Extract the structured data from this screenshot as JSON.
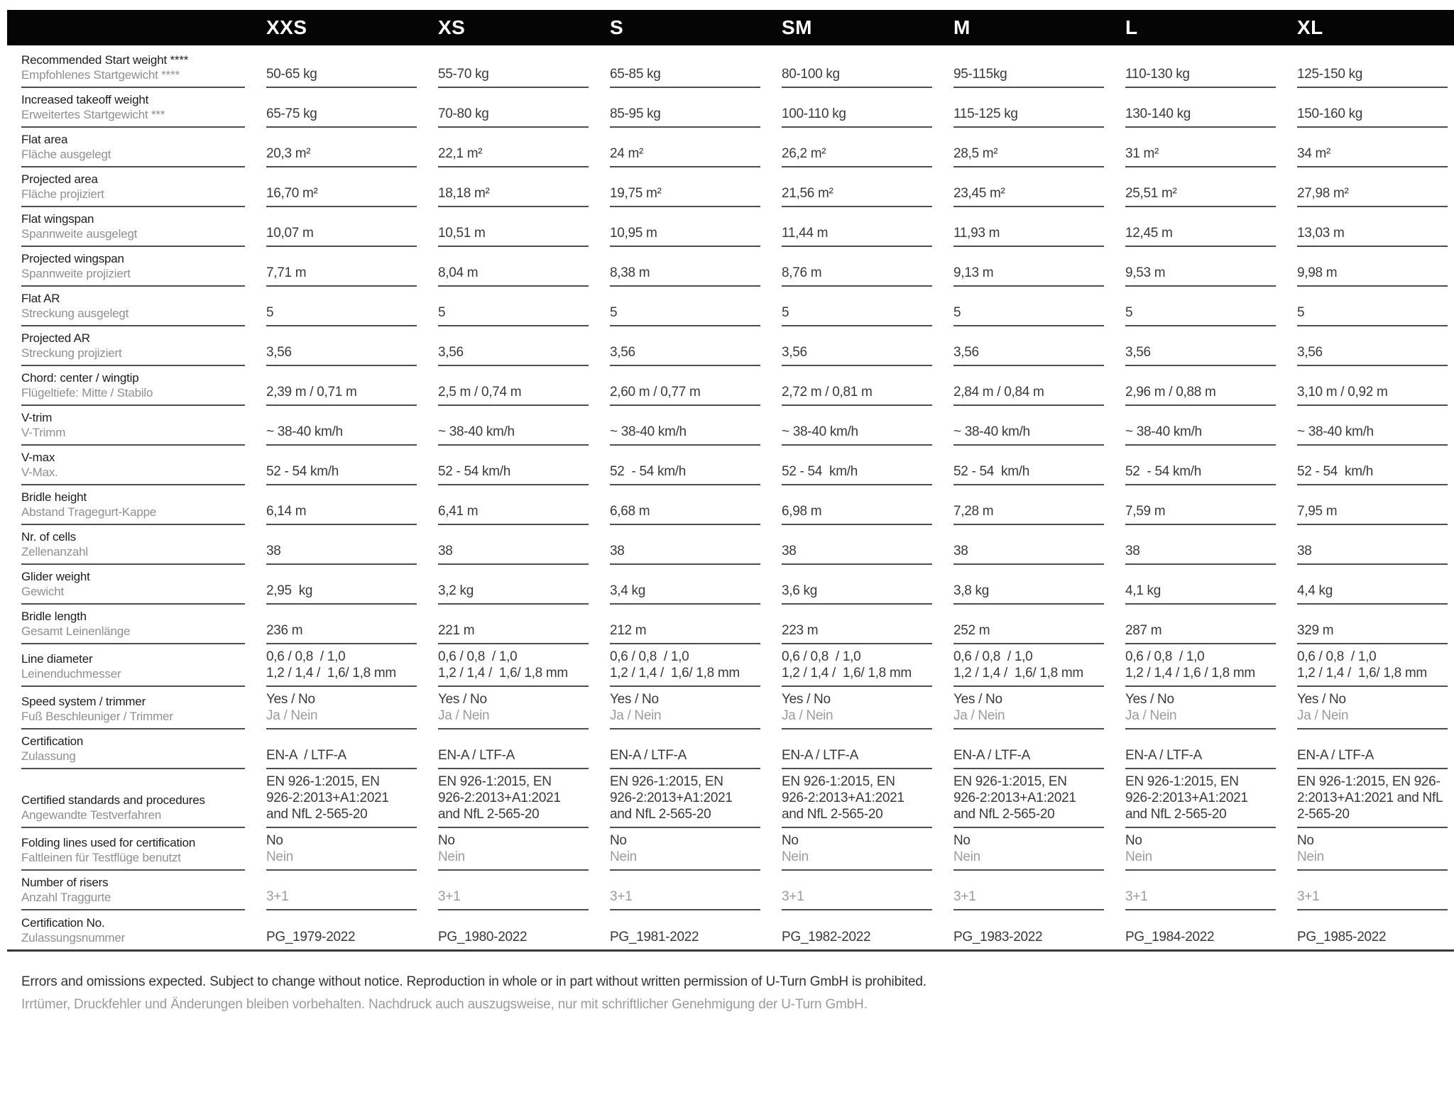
{
  "header": {
    "sizes": [
      "XXS",
      "XS",
      "S",
      "SM",
      "M",
      "L",
      "XL"
    ]
  },
  "rows": [
    {
      "en": "Recommended Start weight ****",
      "de": "Empfohlenes Startgewicht ****",
      "cells": [
        {
          "v": "50-65 kg"
        },
        {
          "v": "55-70 kg"
        },
        {
          "v": "65-85 kg"
        },
        {
          "v": "80-100 kg"
        },
        {
          "v": "95-115kg"
        },
        {
          "v": "110-130 kg"
        },
        {
          "v": "125-150 kg"
        }
      ]
    },
    {
      "en": "Increased takeoff weight",
      "de": "Erweitertes Startgewicht ***",
      "cells": [
        {
          "v": "65-75 kg"
        },
        {
          "v": "70-80 kg"
        },
        {
          "v": "85-95 kg"
        },
        {
          "v": "100-110 kg"
        },
        {
          "v": "115-125 kg"
        },
        {
          "v": "130-140 kg"
        },
        {
          "v": "150-160 kg"
        }
      ]
    },
    {
      "en": "Flat area",
      "de": "Fläche ausgelegt",
      "cells": [
        {
          "v": "20,3 m²"
        },
        {
          "v": "22,1 m²"
        },
        {
          "v": "24 m²"
        },
        {
          "v": "26,2 m²"
        },
        {
          "v": "28,5 m²"
        },
        {
          "v": "31 m²"
        },
        {
          "v": "34 m²"
        }
      ]
    },
    {
      "en": "Projected area",
      "de": "Fläche projiziert",
      "cells": [
        {
          "v": "16,70 m²"
        },
        {
          "v": "18,18 m²"
        },
        {
          "v": "19,75 m²"
        },
        {
          "v": "21,56 m²"
        },
        {
          "v": "23,45 m²"
        },
        {
          "v": "25,51 m²"
        },
        {
          "v": "27,98 m²"
        }
      ]
    },
    {
      "en": "Flat wingspan",
      "de": "Spannweite ausgelegt",
      "cells": [
        {
          "v": "10,07 m"
        },
        {
          "v": "10,51 m"
        },
        {
          "v": "10,95 m"
        },
        {
          "v": "11,44 m"
        },
        {
          "v": "11,93 m"
        },
        {
          "v": "12,45 m"
        },
        {
          "v": "13,03 m"
        }
      ]
    },
    {
      "en": "Projected wingspan",
      "de": "Spannweite projiziert",
      "cells": [
        {
          "v": "7,71 m"
        },
        {
          "v": "8,04 m"
        },
        {
          "v": "8,38 m"
        },
        {
          "v": "8,76 m"
        },
        {
          "v": "9,13 m"
        },
        {
          "v": "9,53 m"
        },
        {
          "v": "9,98 m"
        }
      ]
    },
    {
      "en": "Flat AR",
      "de": "Streckung ausgelegt",
      "cells": [
        {
          "v": "5"
        },
        {
          "v": "5"
        },
        {
          "v": "5"
        },
        {
          "v": "5"
        },
        {
          "v": "5"
        },
        {
          "v": "5"
        },
        {
          "v": "5"
        }
      ]
    },
    {
      "en": "Projected AR",
      "de": "Streckung projiziert",
      "cells": [
        {
          "v": "3,56"
        },
        {
          "v": "3,56"
        },
        {
          "v": "3,56"
        },
        {
          "v": "3,56"
        },
        {
          "v": "3,56"
        },
        {
          "v": "3,56"
        },
        {
          "v": "3,56"
        }
      ]
    },
    {
      "en": "Chord: center / wingtip",
      "de": "Flügeltiefe: Mitte / Stabilo",
      "cells": [
        {
          "v": "2,39 m / 0,71 m"
        },
        {
          "v": "2,5 m / 0,74 m"
        },
        {
          "v": "2,60 m / 0,77 m"
        },
        {
          "v": "2,72 m / 0,81 m"
        },
        {
          "v": "2,84 m / 0,84 m"
        },
        {
          "v": "2,96 m / 0,88 m"
        },
        {
          "v": "3,10 m / 0,92 m"
        }
      ]
    },
    {
      "en": "V-trim",
      "de": "V-Trimm",
      "cells": [
        {
          "v": "~ 38-40 km/h"
        },
        {
          "v": "~ 38-40 km/h"
        },
        {
          "v": "~ 38-40 km/h"
        },
        {
          "v": "~ 38-40 km/h"
        },
        {
          "v": "~ 38-40 km/h"
        },
        {
          "v": "~ 38-40 km/h"
        },
        {
          "v": "~ 38-40 km/h"
        }
      ]
    },
    {
      "en": "V-max",
      "de": "V-Max.",
      "cells": [
        {
          "v": "52 - 54 km/h"
        },
        {
          "v": "52 - 54 km/h"
        },
        {
          "v": "52  - 54 km/h"
        },
        {
          "v": "52 - 54  km/h"
        },
        {
          "v": "52 - 54  km/h"
        },
        {
          "v": "52  - 54 km/h"
        },
        {
          "v": "52 - 54  km/h"
        }
      ]
    },
    {
      "en": "Bridle height",
      "de": "Abstand Tragegurt-Kappe",
      "cells": [
        {
          "v": "6,14 m"
        },
        {
          "v": "6,41 m"
        },
        {
          "v": "6,68 m"
        },
        {
          "v": "6,98 m"
        },
        {
          "v": "7,28 m"
        },
        {
          "v": "7,59 m"
        },
        {
          "v": "7,95 m"
        }
      ]
    },
    {
      "en": "Nr. of cells",
      "de": "Zellenanzahl",
      "cells": [
        {
          "v": "38"
        },
        {
          "v": "38"
        },
        {
          "v": "38"
        },
        {
          "v": "38"
        },
        {
          "v": "38"
        },
        {
          "v": "38"
        },
        {
          "v": "38"
        }
      ]
    },
    {
      "en": "Glider weight",
      "de": "Gewicht",
      "cells": [
        {
          "v": "2,95  kg"
        },
        {
          "v": "3,2 kg"
        },
        {
          "v": "3,4 kg"
        },
        {
          "v": "3,6 kg"
        },
        {
          "v": "3,8 kg"
        },
        {
          "v": "4,1 kg"
        },
        {
          "v": "4,4 kg"
        }
      ]
    },
    {
      "en": "Bridle length",
      "de": "Gesamt Leinenlänge",
      "cells": [
        {
          "v": "236 m"
        },
        {
          "v": "221 m"
        },
        {
          "v": "212 m"
        },
        {
          "v": "223 m"
        },
        {
          "v": "252 m"
        },
        {
          "v": "287 m"
        },
        {
          "v": "329 m"
        }
      ]
    },
    {
      "en": "Line diameter",
      "de": "Leinenduchmesser",
      "cells": [
        {
          "v": "0,6 / 0,8  / 1,0\n1,2 / 1,4 /  1,6/ 1,8 mm"
        },
        {
          "v": "0,6 / 0,8  / 1,0\n1,2 / 1,4 /  1,6/ 1,8 mm"
        },
        {
          "v": "0,6 / 0,8  / 1,0\n1,2 / 1,4 /  1,6/ 1,8 mm"
        },
        {
          "v": "0,6 / 0,8  / 1,0\n1,2 / 1,4 /  1,6/ 1,8 mm"
        },
        {
          "v": "0,6 / 0,8  / 1,0\n1,2 / 1,4 /  1,6/ 1,8 mm"
        },
        {
          "v": "0,6 / 0,8  / 1,0\n1,2 / 1,4 / 1,6 / 1,8 mm"
        },
        {
          "v": "0,6 / 0,8  / 1,0\n1,2 / 1,4 /  1,6/ 1,8 mm"
        }
      ]
    },
    {
      "en": "Speed system / trimmer",
      "de": "Fuß Beschleuniger / Trimmer",
      "cells": [
        {
          "v": "Yes / No",
          "sub": "Ja / Nein"
        },
        {
          "v": "Yes / No",
          "sub": "Ja / Nein"
        },
        {
          "v": "Yes / No",
          "sub": "Ja / Nein"
        },
        {
          "v": "Yes / No",
          "sub": "Ja / Nein"
        },
        {
          "v": "Yes / No",
          "sub": "Ja / Nein"
        },
        {
          "v": "Yes / No",
          "sub": "Ja / Nein"
        },
        {
          "v": "Yes / No",
          "sub": "Ja / Nein"
        }
      ]
    },
    {
      "en": "Certification",
      "de": "Zulassung",
      "cells": [
        {
          "v": "EN-A  / LTF-A"
        },
        {
          "v": "EN-A / LTF-A"
        },
        {
          "v": "EN-A / LTF-A"
        },
        {
          "v": "EN-A / LTF-A"
        },
        {
          "v": "EN-A / LTF-A"
        },
        {
          "v": "EN-A / LTF-A"
        },
        {
          "v": "EN-A / LTF-A"
        }
      ]
    },
    {
      "en": "Certified standards and procedures",
      "de": "Angewandte Testverfahren",
      "cells": [
        {
          "v": "EN 926-1:2015, EN\n926-2:2013+A1:2021\nand NfL 2-565-20"
        },
        {
          "v": "EN 926-1:2015, EN\n926-2:2013+A1:2021\nand NfL 2-565-20"
        },
        {
          "v": "EN 926-1:2015, EN\n926-2:2013+A1:2021\nand NfL 2-565-20"
        },
        {
          "v": "EN 926-1:2015, EN\n926-2:2013+A1:2021\nand NfL 2-565-20"
        },
        {
          "v": "EN 926-1:2015, EN\n926-2:2013+A1:2021\nand NfL 2-565-20"
        },
        {
          "v": "EN 926-1:2015, EN\n926-2:2013+A1:2021\nand NfL 2-565-20"
        },
        {
          "v": "EN 926-1:2015, EN 926-\n2:2013+A1:2021 and NfL\n2-565-20"
        }
      ]
    },
    {
      "en": "Folding lines used for certification",
      "de": "Faltleinen für Testflüge benutzt",
      "cells": [
        {
          "v": "No",
          "sub": "Nein"
        },
        {
          "v": "No",
          "sub": "Nein"
        },
        {
          "v": "No",
          "sub": "Nein"
        },
        {
          "v": "No",
          "sub": "Nein"
        },
        {
          "v": "No",
          "sub": "Nein"
        },
        {
          "v": "No",
          "sub": "Nein"
        },
        {
          "v": "No",
          "sub": "Nein"
        }
      ]
    },
    {
      "en": "Number of risers",
      "de": "Anzahl Traggurte",
      "cells": [
        {
          "v": "3+1",
          "muted": true
        },
        {
          "v": "3+1",
          "muted": true
        },
        {
          "v": "3+1",
          "muted": true
        },
        {
          "v": "3+1",
          "muted": true
        },
        {
          "v": "3+1",
          "muted": true
        },
        {
          "v": "3+1",
          "muted": true
        },
        {
          "v": "3+1",
          "muted": true
        }
      ]
    },
    {
      "en": "Certification No.",
      "de": "Zulassungsnummer",
      "cells": [
        {
          "v": "PG_1979-2022"
        },
        {
          "v": "PG_1980-2022"
        },
        {
          "v": "PG_1981-2022"
        },
        {
          "v": "PG_1982-2022"
        },
        {
          "v": "PG_1983-2022"
        },
        {
          "v": "PG_1984-2022"
        },
        {
          "v": "PG_1985-2022"
        }
      ]
    }
  ],
  "footer": {
    "en": "Errors and omissions expected. Subject to change without notice. Reproduction in whole or in part without written permission of U-Turn GmbH is prohibited.",
    "de": "Irrtümer, Druckfehler und Änderungen bleiben vorbehalten. Nachdruck auch auszugsweise, nur mit schriftlicher Genehmigung der U-Turn GmbH."
  }
}
